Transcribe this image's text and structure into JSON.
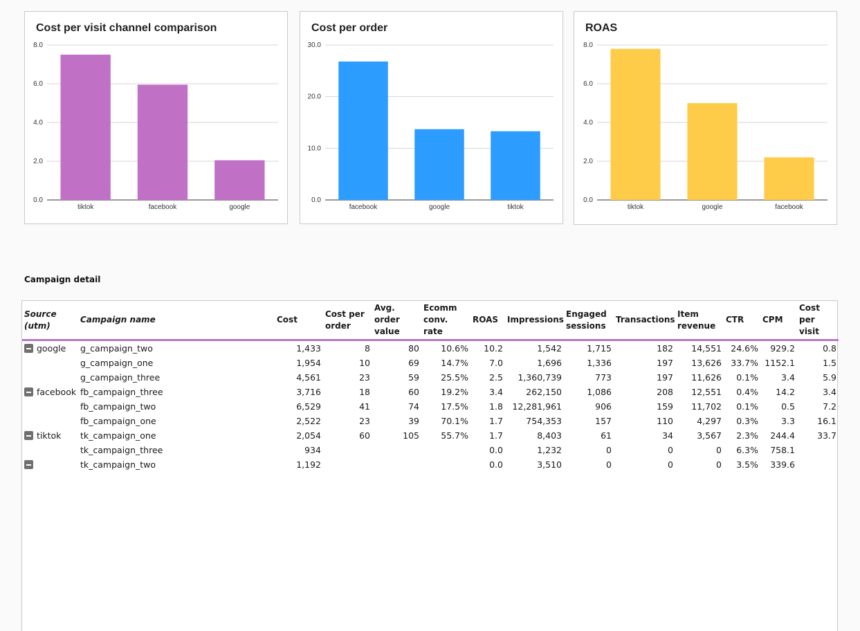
{
  "colors": {
    "chart1_bar": "#c071c6",
    "chart2_bar": "#2d9cff",
    "chart3_bar": "#ffcc4a",
    "header_rule": "#b977c7"
  },
  "chart_data": [
    {
      "type": "bar",
      "title": "Cost per visit channel comparison",
      "categories": [
        "tiktok",
        "facebook",
        "google"
      ],
      "values": [
        7.5,
        5.95,
        2.05
      ],
      "ylim": [
        0,
        8
      ],
      "yticks": [
        "0.0",
        "2.0",
        "4.0",
        "6.0",
        "8.0"
      ],
      "ytick_values": [
        0,
        2,
        4,
        6,
        8
      ],
      "xlabel": "",
      "ylabel": "",
      "grid": true
    },
    {
      "type": "bar",
      "title": "Cost per order",
      "categories": [
        "facebook",
        "google",
        "tiktok"
      ],
      "values": [
        26.8,
        13.7,
        13.3
      ],
      "ylim": [
        0,
        30
      ],
      "yticks": [
        "0.0",
        "10.0",
        "20.0",
        "30.0"
      ],
      "ytick_values": [
        0,
        10,
        20,
        30
      ],
      "xlabel": "",
      "ylabel": "",
      "grid": true
    },
    {
      "type": "bar",
      "title": "ROAS",
      "categories": [
        "tiktok",
        "google",
        "facebook"
      ],
      "values": [
        7.8,
        5.0,
        2.2
      ],
      "ylim": [
        0,
        8
      ],
      "yticks": [
        "0.0",
        "2.0",
        "4.0",
        "6.0",
        "8.0"
      ],
      "ytick_values": [
        0,
        2,
        4,
        6,
        8
      ],
      "xlabel": "",
      "ylabel": "",
      "grid": true
    }
  ],
  "table": {
    "title": "Campaign detail",
    "headers": {
      "source": "Source (utm)",
      "campaign": "Campaign name",
      "cost": "Cost",
      "cost_per_order": "Cost per order",
      "aov": "Avg. order value",
      "conv_rate": "Ecomm conv. rate",
      "roas": "ROAS",
      "impressions": "Impressions",
      "engaged": "Engaged sessions",
      "transactions": "Transactions",
      "revenue": "Item revenue",
      "ctr": "CTR",
      "cpm": "CPM",
      "cpv": "Cost per visit"
    },
    "rows": [
      {
        "source": "google",
        "group_start": true,
        "campaign": "g_campaign_two",
        "cost": "1,433",
        "cost_per_order": "8",
        "aov": "80",
        "conv_rate": "10.6%",
        "roas": "10.2",
        "impressions": "1,542",
        "engaged": "1,715",
        "transactions": "182",
        "revenue": "14,551",
        "ctr": "24.6%",
        "cpm": "929.2",
        "cpv": "0.8"
      },
      {
        "source": "",
        "group_start": false,
        "campaign": "g_campaign_one",
        "cost": "1,954",
        "cost_per_order": "10",
        "aov": "69",
        "conv_rate": "14.7%",
        "roas": "7.0",
        "impressions": "1,696",
        "engaged": "1,336",
        "transactions": "197",
        "revenue": "13,626",
        "ctr": "33.7%",
        "cpm": "1152.1",
        "cpv": "1.5"
      },
      {
        "source": "",
        "group_start": false,
        "campaign": "g_campaign_three",
        "cost": "4,561",
        "cost_per_order": "23",
        "aov": "59",
        "conv_rate": "25.5%",
        "roas": "2.5",
        "impressions": "1,360,739",
        "engaged": "773",
        "transactions": "197",
        "revenue": "11,626",
        "ctr": "0.1%",
        "cpm": "3.4",
        "cpv": "5.9"
      },
      {
        "source": "facebook",
        "group_start": true,
        "campaign": "fb_campaign_three",
        "cost": "3,716",
        "cost_per_order": "18",
        "aov": "60",
        "conv_rate": "19.2%",
        "roas": "3.4",
        "impressions": "262,150",
        "engaged": "1,086",
        "transactions": "208",
        "revenue": "12,551",
        "ctr": "0.4%",
        "cpm": "14.2",
        "cpv": "3.4"
      },
      {
        "source": "",
        "group_start": false,
        "campaign": "fb_campaign_two",
        "cost": "6,529",
        "cost_per_order": "41",
        "aov": "74",
        "conv_rate": "17.5%",
        "roas": "1.8",
        "impressions": "12,281,961",
        "engaged": "906",
        "transactions": "159",
        "revenue": "11,702",
        "ctr": "0.1%",
        "cpm": "0.5",
        "cpv": "7.2"
      },
      {
        "source": "",
        "group_start": false,
        "campaign": "fb_campaign_one",
        "cost": "2,522",
        "cost_per_order": "23",
        "aov": "39",
        "conv_rate": "70.1%",
        "roas": "1.7",
        "impressions": "754,353",
        "engaged": "157",
        "transactions": "110",
        "revenue": "4,297",
        "ctr": "0.3%",
        "cpm": "3.3",
        "cpv": "16.1"
      },
      {
        "source": "tiktok",
        "group_start": true,
        "campaign": "tk_campaign_one",
        "cost": "2,054",
        "cost_per_order": "60",
        "aov": "105",
        "conv_rate": "55.7%",
        "roas": "1.7",
        "impressions": "8,403",
        "engaged": "61",
        "transactions": "34",
        "revenue": "3,567",
        "ctr": "2.3%",
        "cpm": "244.4",
        "cpv": "33.7"
      },
      {
        "source": "",
        "group_start": false,
        "campaign": "tk_campaign_three",
        "cost": "934",
        "cost_per_order": "",
        "aov": "",
        "conv_rate": "",
        "roas": "0.0",
        "impressions": "1,232",
        "engaged": "0",
        "transactions": "0",
        "revenue": "0",
        "ctr": "6.3%",
        "cpm": "758.1",
        "cpv": ""
      },
      {
        "source": "",
        "group_start": true,
        "campaign": "tk_campaign_two",
        "cost": "1,192",
        "cost_per_order": "",
        "aov": "",
        "conv_rate": "",
        "roas": "0.0",
        "impressions": "3,510",
        "engaged": "0",
        "transactions": "0",
        "revenue": "0",
        "ctr": "3.5%",
        "cpm": "339.6",
        "cpv": ""
      }
    ]
  }
}
